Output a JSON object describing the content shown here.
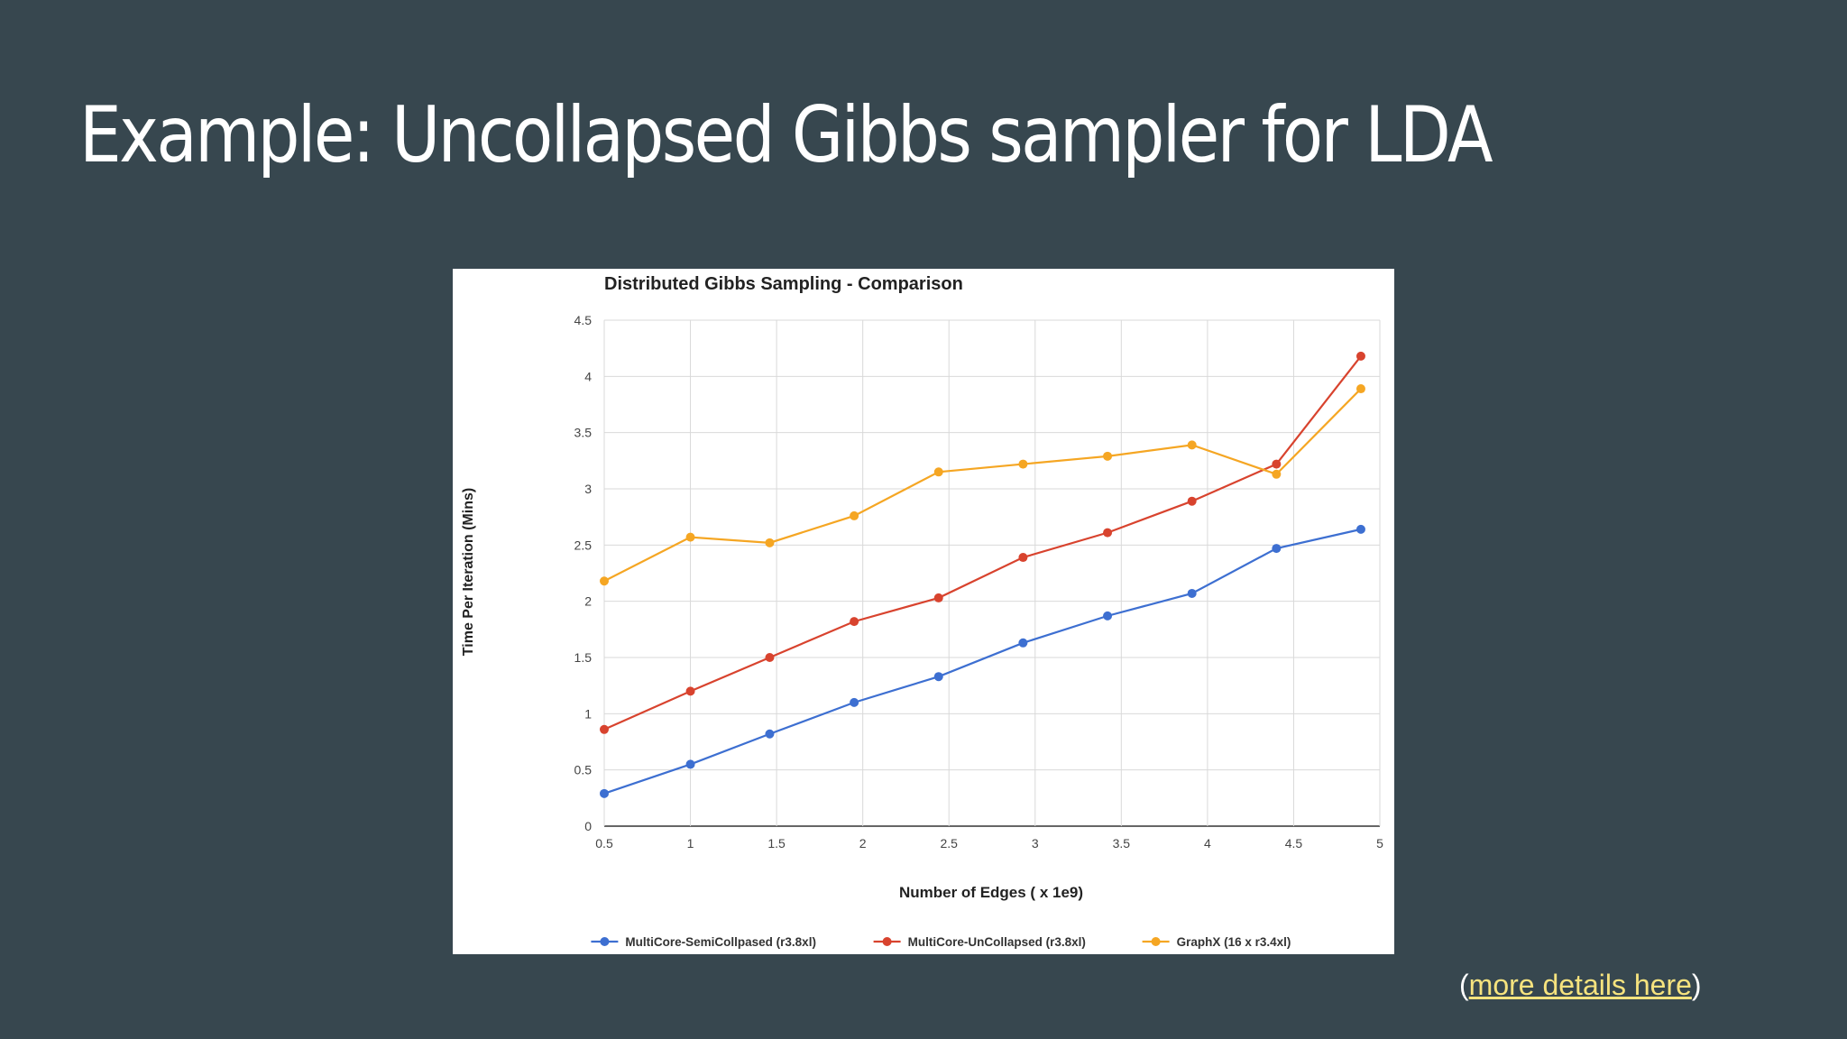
{
  "slide": {
    "title": "Example: Uncollapsed Gibbs sampler for LDA",
    "note_open": "(",
    "link_text": "more details here",
    "note_close": ")"
  },
  "colors": {
    "background": "#37474f",
    "link": "#f6e37e",
    "series": [
      "#3d6fd1",
      "#d8432e",
      "#f5a623"
    ]
  },
  "chart_data": {
    "type": "line",
    "title": "Distributed Gibbs Sampling - Comparison",
    "xlabel": "Number of Edges ( x 1e9)",
    "ylabel": "Time Per Iteration (Mins)",
    "xlim": [
      0.5,
      5
    ],
    "ylim": [
      0,
      4.5
    ],
    "xticks": [
      "0.5",
      "1",
      "1.5",
      "2",
      "2.5",
      "3",
      "3.5",
      "4",
      "4.5",
      "5"
    ],
    "yticks": [
      "0",
      "0.5",
      "1",
      "1.5",
      "2",
      "2.5",
      "3",
      "3.5",
      "4",
      "4.5"
    ],
    "grid": true,
    "legend_position": "bottom",
    "x": [
      0.5,
      1.0,
      1.46,
      1.95,
      2.44,
      2.93,
      3.42,
      3.91,
      4.4,
      4.89
    ],
    "series": [
      {
        "name": "MultiCore-SemiCollpased (r3.8xl)",
        "color": "#3d6fd1",
        "values": [
          0.29,
          0.55,
          0.82,
          1.1,
          1.33,
          1.63,
          1.87,
          2.07,
          2.47,
          2.64
        ]
      },
      {
        "name": "MultiCore-UnCollapsed (r3.8xl)",
        "color": "#d8432e",
        "values": [
          0.86,
          1.2,
          1.5,
          1.82,
          2.03,
          2.39,
          2.61,
          2.89,
          3.22,
          4.18
        ]
      },
      {
        "name": "GraphX (16 x r3.4xl)",
        "color": "#f5a623",
        "values": [
          2.18,
          2.57,
          2.52,
          2.76,
          3.15,
          3.22,
          3.29,
          3.39,
          3.13,
          3.89
        ]
      }
    ]
  }
}
